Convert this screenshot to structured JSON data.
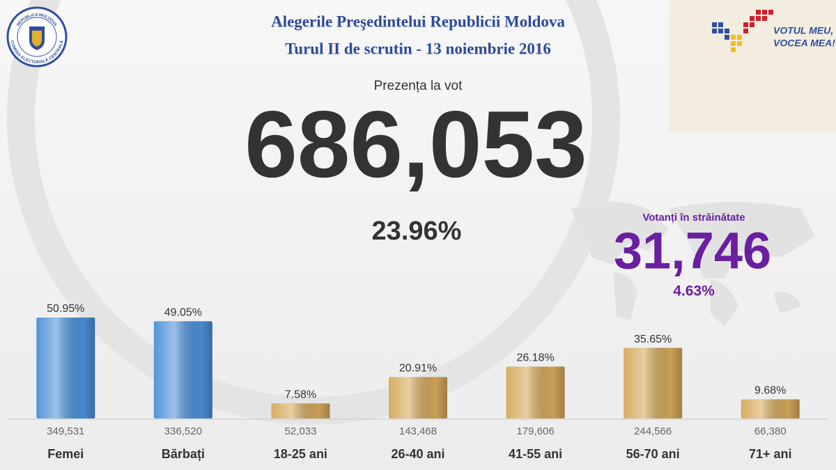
{
  "header": {
    "title_line1": "Alegerile Preşedintelui Republicii Moldova",
    "title_line2": "Turul II de scrutin - 13 noiembrie 2016"
  },
  "logo": {
    "top_text": "REPUBLICA MOLDOVA",
    "bottom_text": "COMISIA ELECTORALĂ CENTRALĂ"
  },
  "slogan": {
    "line1": "VOTUL MEU,",
    "line2": "VOCEA MEA!"
  },
  "turnout": {
    "label": "Prezența la vot",
    "count": "686,053",
    "percent": "23.96%"
  },
  "abroad": {
    "label": "Votanți în străinătate",
    "count": "31,746",
    "percent": "4.63%"
  },
  "chart_data": {
    "type": "bar",
    "categories": [
      "Femei",
      "Bărbați",
      "18-25 ani",
      "26-40 ani",
      "41-55 ani",
      "56-70 ani",
      "71+ ani"
    ],
    "values": [
      50.95,
      49.05,
      7.58,
      20.91,
      26.18,
      35.65,
      9.68
    ],
    "value_labels": [
      "50.95%",
      "49.05%",
      "7.58%",
      "20.91%",
      "26.18%",
      "35.65%",
      "9.68%"
    ],
    "counts": [
      349531,
      336520,
      52033,
      143468,
      179606,
      244566,
      66380
    ],
    "count_labels": [
      "349,531",
      "336,520",
      "52,033",
      "143,468",
      "179,606",
      "244,566",
      "66,380"
    ],
    "colors": [
      "#4a90d9",
      "#4a90d9",
      "#d4a85a",
      "#d4a85a",
      "#d4a85a",
      "#d4a85a",
      "#d4a85a"
    ],
    "ylim": [
      0,
      52
    ]
  }
}
